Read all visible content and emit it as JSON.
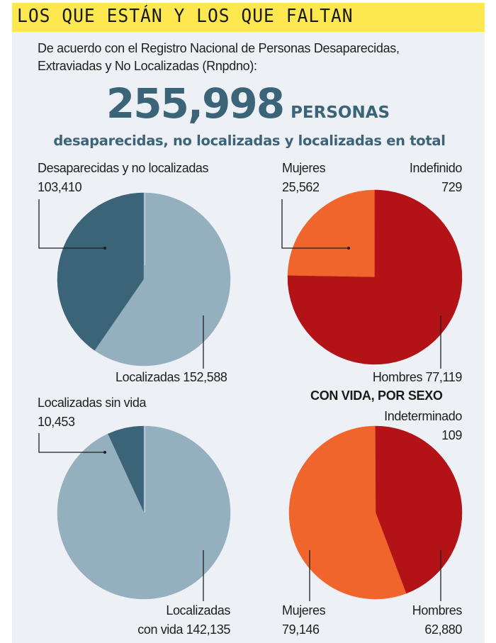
{
  "header": {
    "title": "LOS QUE ESTÁN Y LOS QUE FALTAN"
  },
  "intro": {
    "line1": "De acuerdo con el Registro Nacional de Personas Desaparecidas,",
    "line2": "Extraviadas y No Localizadas (Rnpdno):"
  },
  "total": {
    "number": "255,998",
    "unit": "PERSONAS",
    "subtitle": "desaparecidas, no localizadas y localizadas en total"
  },
  "colors": {
    "header_bg": "#fde94f",
    "panel_bg": "#edf1f5",
    "dark_teal": "#3b6479",
    "light_steel": "#94afbd",
    "orange": "#f0652b",
    "red": "#b31217",
    "leader": "#1e1e1e"
  },
  "chart_data": [
    {
      "type": "pie",
      "title": "",
      "slices": [
        {
          "label": "Desaparecidas y no localizadas",
          "value": 103410,
          "value_text": "103,410",
          "color": "#3b6479"
        },
        {
          "label": "Localizadas",
          "value": 152588,
          "value_text": "152,588",
          "color": "#94afbd"
        }
      ]
    },
    {
      "type": "pie",
      "title": "",
      "slices": [
        {
          "label": "Mujeres",
          "value": 25562,
          "value_text": "25,562",
          "color": "#f0652b"
        },
        {
          "label": "Indefinido",
          "value": 729,
          "value_text": "729",
          "color": "#b31217"
        },
        {
          "label": "Hombres",
          "value": 77119,
          "value_text": "77,119",
          "color": "#b31217"
        }
      ]
    },
    {
      "type": "pie",
      "title": "",
      "slices": [
        {
          "label": "Localizadas sin vida",
          "value": 10453,
          "value_text": "10,453",
          "color": "#3b6479"
        },
        {
          "label": "Localizadas con vida",
          "label_line1": "Localizadas",
          "label_line2": "con vida",
          "value": 142135,
          "value_text": "142,135",
          "color": "#94afbd"
        }
      ]
    },
    {
      "type": "pie",
      "title": "CON VIDA, POR SEXO",
      "slices": [
        {
          "label": "Hombres",
          "value": 62880,
          "value_text": "62,880",
          "color": "#b31217"
        },
        {
          "label": "Indeterminado",
          "value": 109,
          "value_text": "109",
          "color": "#b31217"
        },
        {
          "label": "Mujeres",
          "value": 79146,
          "value_text": "79,146",
          "color": "#f0652b"
        }
      ]
    }
  ]
}
